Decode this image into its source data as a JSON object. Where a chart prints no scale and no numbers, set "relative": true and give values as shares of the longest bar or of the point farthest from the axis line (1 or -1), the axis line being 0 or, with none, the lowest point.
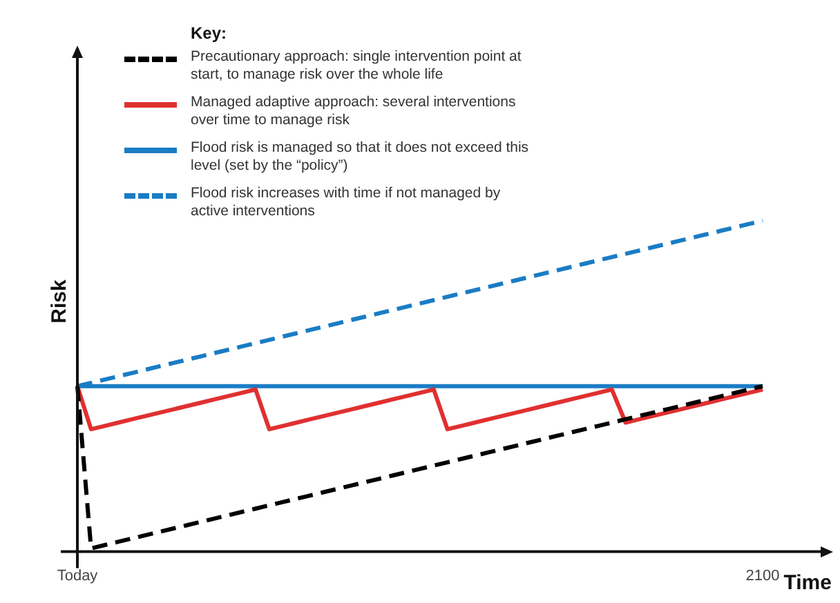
{
  "chart_data": {
    "type": "line",
    "relative": true,
    "xlabel": "Time",
    "ylabel": "Risk",
    "legend_title": "Key:",
    "legend": "top left",
    "marker": "none",
    "categories": [
      "Today",
      null,
      null,
      null,
      null,
      null,
      null,
      null,
      null,
      null,
      null,
      null,
      null,
      null,
      null,
      null,
      null,
      null,
      null,
      null,
      null,
      null,
      null,
      null,
      null,
      null,
      null,
      null,
      null,
      null,
      null,
      null,
      null,
      null,
      null,
      null,
      null,
      null,
      null,
      null,
      null,
      null,
      null,
      null,
      null,
      null,
      null,
      null,
      null,
      null,
      "2100"
    ],
    "series": [
      {
        "name": "Precautionary approach: single intervention point at start, to manage risk over the whole life",
        "color": "#000000",
        "line_style": "dashed",
        "values": [
          0.5,
          0.01,
          0.02,
          0.03,
          0.04,
          0.05,
          0.06,
          0.07,
          0.08,
          0.09,
          0.1,
          0.11,
          0.12,
          0.13,
          0.14,
          0.15,
          0.16,
          0.17,
          0.18,
          0.19,
          0.2,
          0.21,
          0.22,
          0.23,
          0.24,
          0.25,
          0.26,
          0.27,
          0.28,
          0.29,
          0.3,
          0.31,
          0.32,
          0.33,
          0.34,
          0.35,
          0.36,
          0.37,
          0.38,
          0.39,
          0.4,
          0.41,
          0.42,
          0.43,
          0.44,
          0.45,
          0.46,
          0.47,
          0.48,
          0.49,
          0.5
        ]
      },
      {
        "name": "Managed adaptive approach: several interventions over time to manage risk",
        "color": "#e03030",
        "line_style": "solid",
        "values": [
          0.5,
          0.37,
          0.38,
          0.39,
          0.4,
          0.41,
          0.42,
          0.43,
          0.44,
          0.45,
          0.46,
          0.47,
          0.48,
          0.49,
          0.37,
          0.38,
          0.39,
          0.4,
          0.41,
          0.42,
          0.43,
          0.44,
          0.45,
          0.46,
          0.47,
          0.48,
          0.49,
          0.37,
          0.38,
          0.39,
          0.4,
          0.41,
          0.42,
          0.43,
          0.44,
          0.45,
          0.46,
          0.47,
          0.48,
          0.49,
          0.39,
          0.4,
          0.41,
          0.42,
          0.43,
          0.44,
          0.45,
          0.46,
          0.47,
          0.48,
          0.49
        ]
      },
      {
        "name": "Flood risk is managed so that it does not exceed this level (set by the “policy”)",
        "color": "#1a7cc4",
        "line_style": "solid",
        "values": [
          0.5,
          0.5,
          0.5,
          0.5,
          0.5,
          0.5,
          0.5,
          0.5,
          0.5,
          0.5,
          0.5,
          0.5,
          0.5,
          0.5,
          0.5,
          0.5,
          0.5,
          0.5,
          0.5,
          0.5,
          0.5,
          0.5,
          0.5,
          0.5,
          0.5,
          0.5,
          0.5,
          0.5,
          0.5,
          0.5,
          0.5,
          0.5,
          0.5,
          0.5,
          0.5,
          0.5,
          0.5,
          0.5,
          0.5,
          0.5,
          0.5,
          0.5,
          0.5,
          0.5,
          0.5,
          0.5,
          0.5,
          0.5,
          0.5,
          0.5,
          0.5
        ]
      },
      {
        "name": "Flood risk increases with time if not managed by active interventions",
        "color": "#1a7cc4",
        "line_style": "dashed",
        "values": [
          0.5,
          0.51,
          0.52,
          0.53,
          0.54,
          0.55,
          0.56,
          0.57,
          0.58,
          0.59,
          0.6,
          0.61,
          0.62,
          0.63,
          0.64,
          0.65,
          0.66,
          0.67,
          0.68,
          0.69,
          0.7,
          0.71,
          0.72,
          0.73,
          0.74,
          0.75,
          0.76,
          0.77,
          0.78,
          0.79,
          0.8,
          0.81,
          0.82,
          0.83,
          0.84,
          0.85,
          0.86,
          0.87,
          0.88,
          0.89,
          0.9,
          0.91,
          0.92,
          0.93,
          0.94,
          0.95,
          0.96,
          0.97,
          0.98,
          0.99,
          1.0
        ]
      }
    ]
  }
}
